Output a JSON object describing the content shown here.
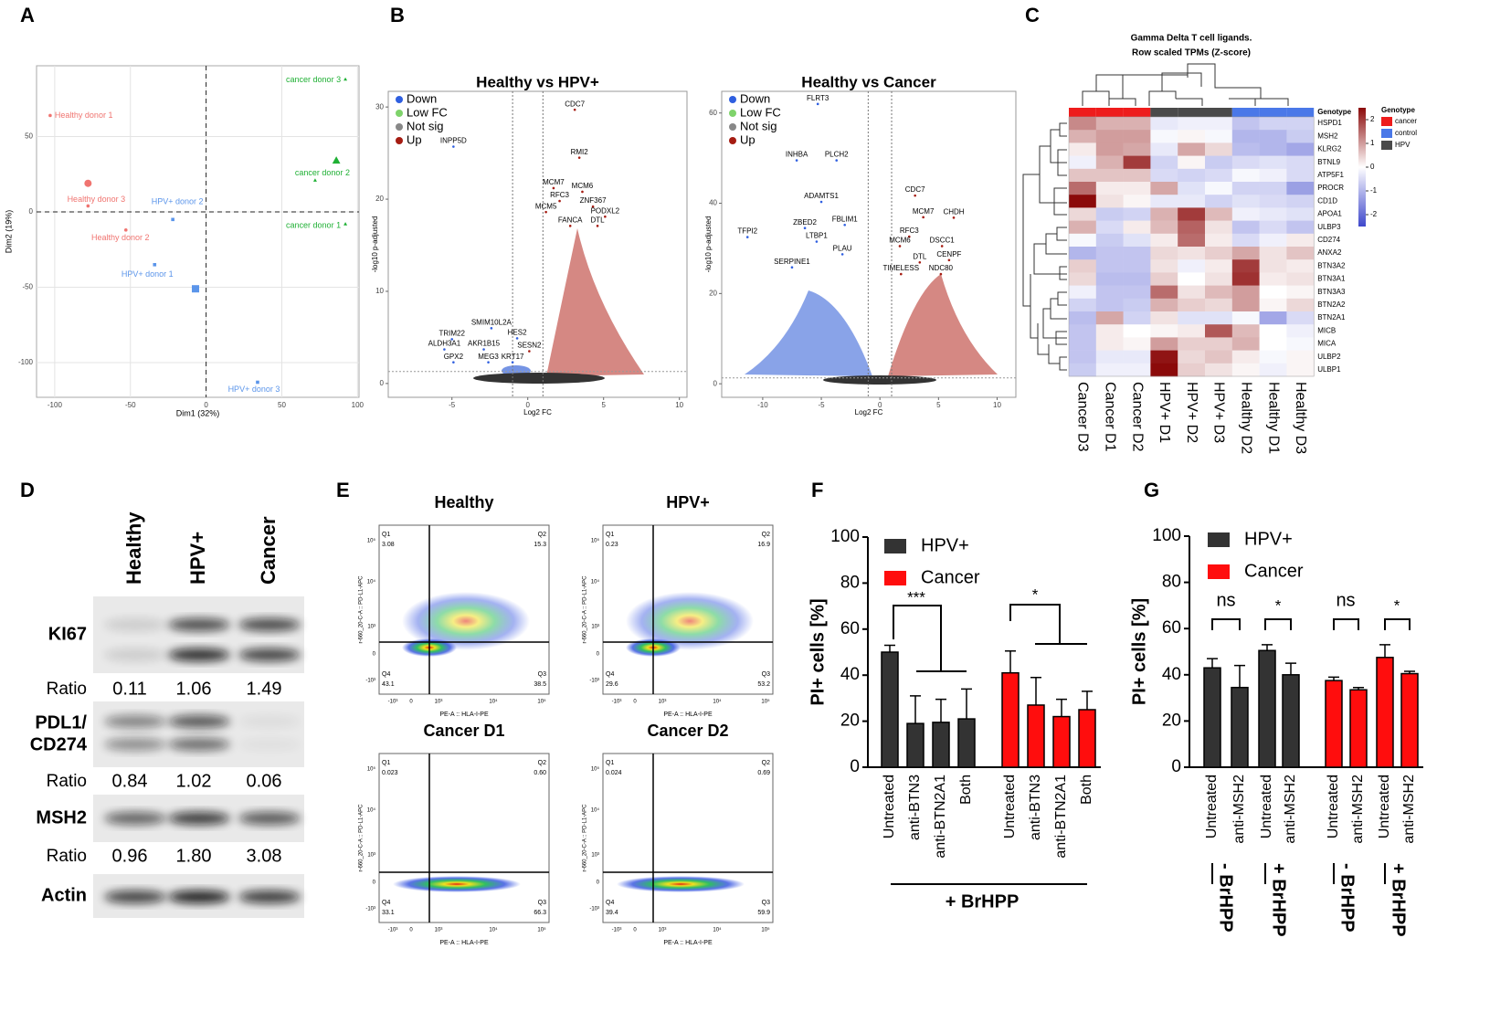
{
  "panel_letters": [
    "A",
    "B",
    "C",
    "D",
    "E",
    "F",
    "G"
  ],
  "chart_data": [
    {
      "type": "scatter",
      "xlabel": "Dim1 (32%)",
      "ylabel": "Dim2 (19%)",
      "xlim": [
        -112,
        101
      ],
      "ylim": [
        -123,
        97
      ],
      "xticks": [
        -100,
        -50,
        0,
        50,
        100
      ],
      "yticks": [
        -100,
        -50,
        0,
        50
      ],
      "grid": true,
      "zero_lines": true,
      "series": [
        {
          "color": "#f07470",
          "marker": "circle",
          "points": [
            {
              "label": "Healthy donor 1",
              "x": -103,
              "y": 64
            },
            {
              "label": "Healthy donor 3",
              "x": -78,
              "y": 4
            },
            {
              "label": "Healthy donor 2",
              "x": -53,
              "y": -12
            }
          ],
          "centroid": {
            "x": -78,
            "y": 19
          }
        },
        {
          "color": "#5b95ea",
          "marker": "square",
          "points": [
            {
              "label": "HPV+ donor 2",
              "x": -22,
              "y": -5
            },
            {
              "label": "HPV+ donor 1",
              "x": -34,
              "y": -35
            },
            {
              "label": "HPV+ donor 3",
              "x": 34,
              "y": -113
            }
          ],
          "centroid": {
            "x": -7,
            "y": -51
          }
        },
        {
          "color": "#1fb034",
          "marker": "triangle",
          "points": [
            {
              "label": "cancer donor 3",
              "x": 92,
              "y": 88
            },
            {
              "label": "cancer donor 2",
              "x": 72,
              "y": 21
            },
            {
              "label": "cancer donor 1",
              "x": 92,
              "y": -8
            }
          ],
          "centroid": {
            "x": 86,
            "y": 34
          }
        }
      ]
    },
    {
      "type": "volcano",
      "title": "Healthy vs HPV+",
      "xlabel": "Log2 FC",
      "ylabel": "-log10 p-adjusted",
      "xlim": [
        -9.2,
        10.5
      ],
      "ylim": [
        -1.5,
        31.7
      ],
      "xticks": [
        -5,
        0,
        5,
        10
      ],
      "yticks": [
        0,
        10,
        20,
        30
      ],
      "fc_cutoff": 1,
      "p_cutoff": 1.3,
      "legend": [
        {
          "name": "Down",
          "color": "#2f5fe0"
        },
        {
          "name": "Low FC",
          "color": "#7fd36b"
        },
        {
          "name": "Not sig",
          "color": "#888888"
        },
        {
          "name": "Up",
          "color": "#a51c12"
        }
      ],
      "genes": [
        {
          "label": "CDC7",
          "x": 3.1,
          "y": 29.7
        },
        {
          "label": "RMI2",
          "x": 3.4,
          "y": 24.5
        },
        {
          "label": "INPP5D",
          "x": -4.9,
          "y": 25.7
        },
        {
          "label": "MCM7",
          "x": 1.7,
          "y": 21.2
        },
        {
          "label": "MCM6",
          "x": 3.6,
          "y": 20.8
        },
        {
          "label": "RFC3",
          "x": 2.1,
          "y": 19.8
        },
        {
          "label": "ZNF367",
          "x": 4.3,
          "y": 19.2
        },
        {
          "label": "MCM5",
          "x": 1.2,
          "y": 18.6
        },
        {
          "label": "PODXL2",
          "x": 5.1,
          "y": 18.1
        },
        {
          "label": "FANCA",
          "x": 2.8,
          "y": 17.1
        },
        {
          "label": "DTL",
          "x": 4.6,
          "y": 17.1
        },
        {
          "label": "SMIM10L2A",
          "x": -2.4,
          "y": 6.0
        },
        {
          "label": "TRIM22",
          "x": -5.0,
          "y": 4.8
        },
        {
          "label": "HES2",
          "x": -0.7,
          "y": 4.9
        },
        {
          "label": "ALDH3A1",
          "x": -5.5,
          "y": 3.7
        },
        {
          "label": "AKR1B15",
          "x": -2.9,
          "y": 3.7
        },
        {
          "label": "SESN2",
          "x": 0.1,
          "y": 3.5
        },
        {
          "label": "GPX2",
          "x": -4.9,
          "y": 2.3
        },
        {
          "label": "MEG3",
          "x": -2.6,
          "y": 2.3
        },
        {
          "label": "KRT17",
          "x": -1.0,
          "y": 2.3
        }
      ]
    },
    {
      "type": "volcano",
      "title": "Healthy vs Cancer",
      "xlabel": "Log2 FC",
      "ylabel": "-log10 p-adjusted",
      "xlim": [
        -13.5,
        11.6
      ],
      "ylim": [
        -3,
        64.8
      ],
      "xticks": [
        -10,
        -5,
        0,
        5,
        10
      ],
      "yticks": [
        0,
        20,
        40,
        60
      ],
      "fc_cutoff": 1,
      "p_cutoff": 1.3,
      "legend": [
        {
          "name": "Down",
          "color": "#2f5fe0"
        },
        {
          "name": "Low FC",
          "color": "#7fd36b"
        },
        {
          "name": "Not sig",
          "color": "#888888"
        },
        {
          "name": "Up",
          "color": "#a51c12"
        }
      ],
      "genes": [
        {
          "label": "FLRT3",
          "x": -5.3,
          "y": 62
        },
        {
          "label": "INHBA",
          "x": -7.1,
          "y": 49.5
        },
        {
          "label": "PLCH2",
          "x": -3.7,
          "y": 49.5
        },
        {
          "label": "ADAMTS1",
          "x": -5.0,
          "y": 40.3
        },
        {
          "label": "ZBED2",
          "x": -6.4,
          "y": 34.5
        },
        {
          "label": "FBLIM1",
          "x": -3.0,
          "y": 35.2
        },
        {
          "label": "TFPI2",
          "x": -11.3,
          "y": 32.5
        },
        {
          "label": "LTBP1",
          "x": -5.4,
          "y": 31.5
        },
        {
          "label": "PLAU",
          "x": -3.2,
          "y": 28.7
        },
        {
          "label": "SERPINE1",
          "x": -7.5,
          "y": 25.8
        },
        {
          "label": "CDC7",
          "x": 3.0,
          "y": 41.7
        },
        {
          "label": "MCM7",
          "x": 3.7,
          "y": 36.9
        },
        {
          "label": "CHDH",
          "x": 6.3,
          "y": 36.8
        },
        {
          "label": "RFC3",
          "x": 2.5,
          "y": 32.6
        },
        {
          "label": "MCM6",
          "x": 1.7,
          "y": 30.5
        },
        {
          "label": "DSCC1",
          "x": 5.3,
          "y": 30.5
        },
        {
          "label": "CENPF",
          "x": 5.9,
          "y": 27.4
        },
        {
          "label": "DTL",
          "x": 3.4,
          "y": 26.9
        },
        {
          "label": "TIMELESS",
          "x": 1.8,
          "y": 24.3
        },
        {
          "label": "NDC80",
          "x": 5.2,
          "y": 24.3
        }
      ]
    },
    {
      "type": "heatmap",
      "title": [
        "Gamma Delta T cell ligands.",
        "Row scaled TPMs (Z-score)"
      ],
      "annotation_title": "Genotype",
      "columns": [
        "Cancer D3",
        "Cancer D1",
        "Cancer D2",
        "HPV+ D1",
        "HPV+ D2",
        "HPV+ D3",
        "Healthy D2",
        "Healthy D1",
        "Healthy D3"
      ],
      "genotype": [
        "cancer",
        "cancer",
        "cancer",
        "HPV",
        "HPV",
        "HPV",
        "control",
        "control",
        "control"
      ],
      "legend": {
        "title": "Genotype",
        "entries": [
          {
            "name": "cancer",
            "color": "#ee1c1c"
          },
          {
            "name": "control",
            "color": "#4a78e8"
          },
          {
            "name": "HPV",
            "color": "#4a4a4a"
          }
        ]
      },
      "clim": [
        -2.5,
        2.5
      ],
      "colorbar_ticks": [
        2,
        1,
        0,
        -1,
        -2
      ],
      "low_color": "#3f48cc",
      "high_color": "#8b0a0a",
      "rows": [
        "HSPD1",
        "MSH2",
        "KLRG2",
        "BTNL9",
        "ATP5F1",
        "PROCR",
        "CD1D",
        "APOA1",
        "ULBP3",
        "CD274",
        "ANXA2",
        "BTN3A2",
        "BTN3A1",
        "BTN3A3",
        "BTN2A2",
        "BTN2A1",
        "MICB",
        "MICA",
        "ULBP2",
        "ULBP1"
      ],
      "values": [
        [
          1.2,
          0.8,
          0.8,
          -0.3,
          -0.2,
          -0.2,
          -0.8,
          -0.6,
          -0.6
        ],
        [
          0.8,
          1.0,
          1.0,
          -0.1,
          0.1,
          -0.1,
          -1.0,
          -1.0,
          -0.7
        ],
        [
          0.2,
          1.0,
          0.9,
          -0.3,
          0.9,
          0.4,
          -0.9,
          -1.0,
          -1.2
        ],
        [
          -0.2,
          0.8,
          2.0,
          -0.6,
          0.1,
          -0.7,
          -0.5,
          -0.4,
          -0.5
        ],
        [
          0.6,
          0.6,
          0.6,
          -0.5,
          -0.6,
          -0.5,
          -0.1,
          -0.2,
          -0.5
        ],
        [
          1.5,
          0.2,
          0.2,
          0.9,
          -0.4,
          -0.1,
          -0.6,
          -0.6,
          -1.3
        ],
        [
          2.5,
          0.3,
          0.1,
          -0.3,
          -0.3,
          -0.6,
          -0.4,
          -0.5,
          -0.6
        ],
        [
          0.4,
          -0.7,
          -0.6,
          0.8,
          2.0,
          0.7,
          -0.2,
          -0.3,
          -0.4
        ],
        [
          0.8,
          -0.5,
          0.2,
          0.7,
          1.6,
          0.3,
          -0.8,
          -0.5,
          -0.8
        ],
        [
          -0.1,
          -0.7,
          -0.4,
          0.2,
          1.5,
          0.2,
          -0.5,
          -0.2,
          0.2
        ],
        [
          -1.0,
          -0.8,
          -0.8,
          0.4,
          0.3,
          0.5,
          0.9,
          0.3,
          0.6
        ],
        [
          0.5,
          -0.8,
          -0.8,
          0.3,
          -0.2,
          0.2,
          2.0,
          0.3,
          0.2
        ],
        [
          0.4,
          -0.9,
          -0.9,
          0.5,
          0.0,
          0.3,
          2.1,
          0.2,
          0.3
        ],
        [
          -0.2,
          -0.8,
          -0.8,
          1.5,
          0.3,
          0.7,
          1.0,
          0.0,
          0.1
        ],
        [
          -0.6,
          -0.8,
          -0.7,
          0.8,
          0.5,
          0.4,
          1.0,
          0.1,
          0.4
        ],
        [
          -0.9,
          0.9,
          -0.6,
          0.3,
          -0.4,
          -0.4,
          -0.1,
          -1.2,
          -0.5
        ],
        [
          -0.8,
          0.2,
          0.0,
          0.1,
          0.2,
          1.7,
          0.7,
          0.0,
          -0.2
        ],
        [
          -0.8,
          0.2,
          0.1,
          1.0,
          0.5,
          0.5,
          0.8,
          0.0,
          -0.1
        ],
        [
          -0.8,
          -0.3,
          -0.3,
          2.4,
          0.4,
          0.6,
          0.2,
          -0.1,
          0.1
        ],
        [
          -0.7,
          -0.2,
          -0.2,
          2.8,
          0.5,
          0.3,
          0.1,
          -0.2,
          0.1
        ]
      ]
    },
    {
      "type": "bar",
      "ylabel": "PI+ cells [%]",
      "ylim": [
        0,
        100
      ],
      "yticks": [
        0,
        20,
        40,
        60,
        80,
        100
      ],
      "series": [
        {
          "name": "HPV+",
          "color": "#333333",
          "categories": [
            "Untreated",
            "anti-BTN3",
            "anti-BTN2A1",
            "Both"
          ],
          "values": [
            50,
            19,
            19.5,
            21
          ],
          "errors": [
            3,
            12,
            10,
            13
          ]
        },
        {
          "name": "Cancer",
          "color": "#ff0d0d",
          "categories": [
            "Untreated",
            "anti-BTN3",
            "anti-BTN2A1",
            "Both"
          ],
          "values": [
            41,
            27,
            22,
            25
          ],
          "errors": [
            9.5,
            12,
            7.5,
            8
          ]
        }
      ],
      "annotations": [
        "***",
        "*"
      ],
      "group_labels": [
        "+ BrHPP"
      ]
    },
    {
      "type": "bar",
      "ylabel": "PI+ cells [%]",
      "ylim": [
        0,
        100
      ],
      "yticks": [
        0,
        20,
        40,
        60,
        80,
        100
      ],
      "series": [
        {
          "name": "HPV+",
          "color": "#333333",
          "categories": [
            "Untreated",
            "anti-MSH2",
            "Untreated",
            "anti-MSH2"
          ],
          "values": [
            43,
            34.5,
            50.5,
            40
          ],
          "errors": [
            4,
            9.5,
            2.5,
            5
          ]
        },
        {
          "name": "Cancer",
          "color": "#ff0d0d",
          "categories": [
            "Untreated",
            "anti-MSH2",
            "Untreated",
            "anti-MSH2"
          ],
          "values": [
            37.5,
            33.5,
            47.5,
            40.5
          ],
          "errors": [
            1.5,
            1,
            5.5,
            1
          ]
        }
      ],
      "annotations": [
        "ns",
        "*",
        "ns",
        "*"
      ],
      "group_labels": [
        "- BrHPP",
        "+ BrHPP",
        "- BrHPP",
        "+ BrHPP"
      ]
    }
  ],
  "blot": {
    "columns": [
      "Healthy",
      "HPV+",
      "Cancer"
    ],
    "ratio_label": "Ratio",
    "rows": [
      {
        "label": "KI67",
        "ratios": [
          "0.11",
          "1.06",
          "1.49"
        ]
      },
      {
        "label": [
          "PDL1/",
          "CD274"
        ],
        "ratios": [
          "0.84",
          "1.02",
          "0.06"
        ]
      },
      {
        "label": "MSH2",
        "ratios": [
          "0.96",
          "1.80",
          "3.08"
        ]
      },
      {
        "label": "Actin"
      }
    ]
  },
  "flow": {
    "xlabel": "PE-A :: HLA-I-PE",
    "ylabel": "r-660_20-C-A :: PD-L1-APC",
    "xticks": [
      "-10³",
      "0",
      "10³",
      "10⁴",
      "10⁵"
    ],
    "yticks": [
      "10⁵",
      "10⁴",
      "10³",
      "0",
      "-10³"
    ],
    "quadrants": [
      "Q1",
      "Q2",
      "Q3",
      "Q4"
    ],
    "plots": [
      {
        "title": "Healthy",
        "values": [
          "3.08",
          "15.3",
          "38.5",
          "43.1"
        ]
      },
      {
        "title": "HPV+",
        "values": [
          "0.23",
          "16.9",
          "53.2",
          "29.6"
        ]
      },
      {
        "title": "Cancer D1",
        "values": [
          "0.023",
          "0.60",
          "66.3",
          "33.1"
        ]
      },
      {
        "title": "Cancer D2",
        "values": [
          "0.024",
          "0.69",
          "59.9",
          "39.4"
        ]
      }
    ]
  }
}
